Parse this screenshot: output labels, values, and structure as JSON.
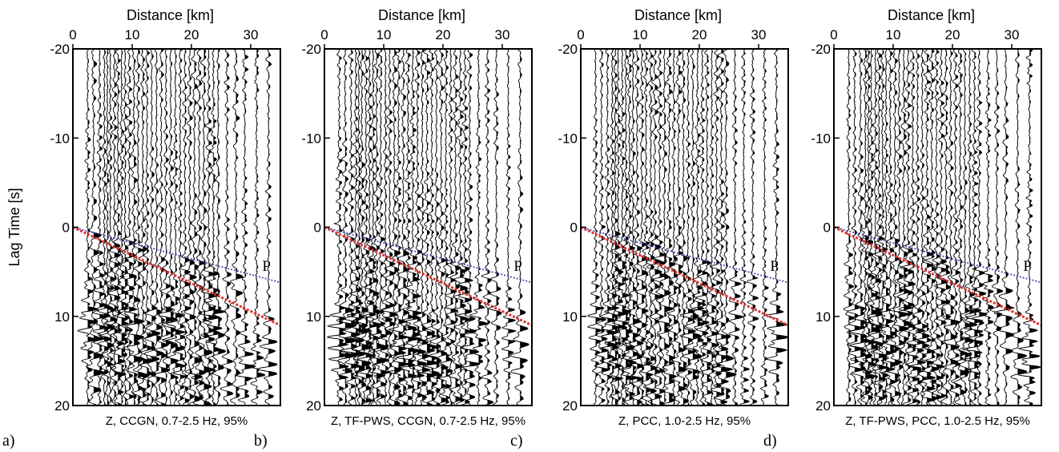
{
  "chart_data": [
    {
      "type": "line",
      "panel": "a)",
      "caption": "Z, CCGN, 0.7-2.5 Hz, 95%",
      "xlabel": "Distance [km]",
      "ylabel": "Lag Time [s]",
      "xlim": [
        0,
        35
      ],
      "ylim": [
        -20,
        20
      ],
      "xticks": [
        0,
        10,
        20,
        30
      ],
      "yticks": [
        -20,
        -10,
        0,
        10,
        20
      ],
      "trace_distances_km": [
        2.5,
        3.5,
        4.5,
        5.3,
        5.8,
        6.3,
        7.0,
        7.6,
        8.2,
        8.8,
        9.5,
        10.3,
        11.0,
        11.8,
        12.5,
        13.3,
        14.1,
        14.9,
        15.7,
        16.5,
        17.3,
        18.1,
        18.9,
        19.7,
        20.5,
        21.3,
        22.1,
        22.9,
        23.7,
        24.5,
        26.0,
        27.5,
        29.0,
        31.0,
        33.0
      ],
      "phase_label": "P",
      "moveout_lines": [
        {
          "color": "#3a3aa8",
          "x": [
            0,
            35
          ],
          "y": [
            0,
            6.2
          ]
        },
        {
          "color": "#e03030",
          "x": [
            0,
            35
          ],
          "y": [
            0,
            11.0
          ]
        }
      ]
    },
    {
      "type": "line",
      "panel": "b)",
      "caption": "Z, TF-PWS, CCGN, 0.7-2.5 Hz, 95%",
      "xlabel": "Distance [km]",
      "ylabel": "",
      "xlim": [
        0,
        35
      ],
      "ylim": [
        -20,
        20
      ],
      "xticks": [
        0,
        10,
        20,
        30
      ],
      "yticks": [
        -20,
        -10,
        0,
        10,
        20
      ],
      "trace_distances_km": [
        2.5,
        3.5,
        4.5,
        5.3,
        5.8,
        6.3,
        7.0,
        7.6,
        8.2,
        8.8,
        9.5,
        10.3,
        11.0,
        11.8,
        12.5,
        13.3,
        14.1,
        14.9,
        15.7,
        16.5,
        17.3,
        18.1,
        18.9,
        19.7,
        20.5,
        21.3,
        22.1,
        22.9,
        23.7,
        24.5,
        26.0,
        27.5,
        29.0,
        31.0,
        33.0
      ],
      "phase_label": "P",
      "moveout_lines": [
        {
          "color": "#3a3aa8",
          "x": [
            0,
            35
          ],
          "y": [
            0,
            6.2
          ]
        },
        {
          "color": "#e03030",
          "x": [
            0,
            35
          ],
          "y": [
            0,
            11.0
          ]
        }
      ]
    },
    {
      "type": "line",
      "panel": "c)",
      "caption": "Z, PCC, 1.0-2.5 Hz, 95%",
      "xlabel": "Distance [km]",
      "ylabel": "",
      "xlim": [
        0,
        35
      ],
      "ylim": [
        -20,
        20
      ],
      "xticks": [
        0,
        10,
        20,
        30
      ],
      "yticks": [
        -20,
        -10,
        0,
        10,
        20
      ],
      "trace_distances_km": [
        2.5,
        3.5,
        4.5,
        5.3,
        5.8,
        6.3,
        7.0,
        7.6,
        8.2,
        8.8,
        9.5,
        10.3,
        11.0,
        11.8,
        12.5,
        13.3,
        14.1,
        14.9,
        15.7,
        16.5,
        17.3,
        18.1,
        18.9,
        19.7,
        20.5,
        21.3,
        22.1,
        22.9,
        23.7,
        24.5,
        26.0,
        27.5,
        29.0,
        31.0,
        33.0
      ],
      "phase_label": "P",
      "moveout_lines": [
        {
          "color": "#3a3aa8",
          "x": [
            0,
            35
          ],
          "y": [
            0,
            6.2
          ]
        },
        {
          "color": "#e03030",
          "x": [
            0,
            35
          ],
          "y": [
            0,
            11.0
          ]
        }
      ]
    },
    {
      "type": "line",
      "panel": "d)",
      "caption": "Z, TF-PWS, PCC, 1.0-2.5 Hz, 95%",
      "xlabel": "Distance [km]",
      "ylabel": "",
      "xlim": [
        0,
        35
      ],
      "ylim": [
        -20,
        20
      ],
      "xticks": [
        0,
        10,
        20,
        30
      ],
      "yticks": [
        -20,
        -10,
        0,
        10,
        20
      ],
      "trace_distances_km": [
        2.5,
        3.5,
        4.5,
        5.3,
        5.8,
        6.3,
        7.0,
        7.6,
        8.2,
        8.8,
        9.5,
        10.3,
        11.0,
        11.8,
        12.5,
        13.3,
        14.1,
        14.9,
        15.7,
        16.5,
        17.3,
        18.1,
        18.9,
        19.7,
        20.5,
        21.3,
        22.1,
        22.9,
        23.7,
        24.5,
        26.0,
        27.5,
        29.0,
        31.0,
        33.0
      ],
      "phase_label": "P",
      "moveout_lines": [
        {
          "color": "#3a3aa8",
          "x": [
            0,
            35
          ],
          "y": [
            0,
            6.2
          ]
        },
        {
          "color": "#e03030",
          "x": [
            0,
            35
          ],
          "y": [
            0,
            11.0
          ]
        }
      ]
    }
  ]
}
